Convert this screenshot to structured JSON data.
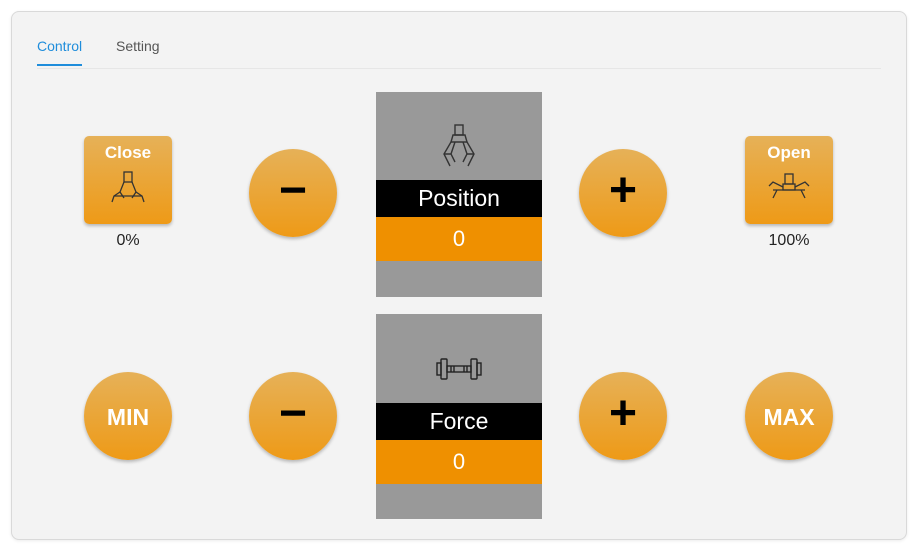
{
  "tabs": {
    "control": "Control",
    "setting": "Setting"
  },
  "position": {
    "close_label": "Close",
    "close_percent": "0%",
    "open_label": "Open",
    "open_percent": "100%",
    "display_label": "Position",
    "display_value": "0",
    "minus_symbol": "−",
    "plus_symbol": "+"
  },
  "force": {
    "min_label": "MIN",
    "max_label": "MAX",
    "display_label": "Force",
    "display_value": "0",
    "minus_symbol": "−",
    "plus_symbol": "+"
  },
  "icons": {
    "gripper": "gripper-icon",
    "gripper_closed": "gripper-closed-icon",
    "gripper_open": "gripper-open-icon",
    "force": "dumbbell-icon"
  },
  "colors": {
    "accent": "#1f8ddb",
    "button_top": "#e6b158",
    "button_bottom": "#ee9a17",
    "display_value_bg": "#ef9000",
    "display_bg": "#999999"
  }
}
